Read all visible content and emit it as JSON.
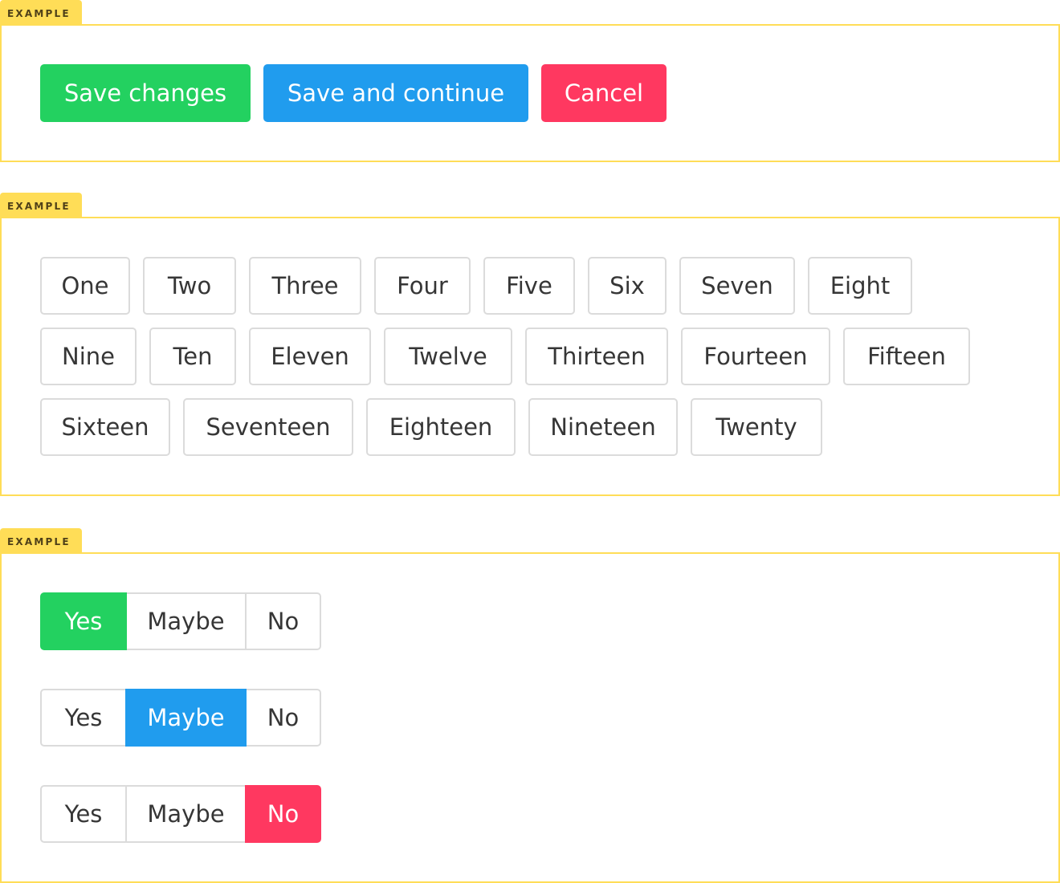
{
  "example_label": "EXAMPLE",
  "colors": {
    "success": "#23d160",
    "info": "#209cee",
    "danger": "#ff3860",
    "tag": "#ffdd57",
    "border": "#dbdbdb"
  },
  "section1": {
    "buttons": [
      {
        "label": "Save changes",
        "color": "#23d160"
      },
      {
        "label": "Save and continue",
        "color": "#209cee"
      },
      {
        "label": "Cancel",
        "color": "#ff3860"
      }
    ]
  },
  "section2": {
    "buttons": [
      "One",
      "Two",
      "Three",
      "Four",
      "Five",
      "Six",
      "Seven",
      "Eight",
      "Nine",
      "Ten",
      "Eleven",
      "Twelve",
      "Thirteen",
      "Fourteen",
      "Fifteen",
      "Sixteen",
      "Seventeen",
      "Eighteen",
      "Nineteen",
      "Twenty"
    ]
  },
  "section3": {
    "groups": [
      {
        "options": [
          "Yes",
          "Maybe",
          "No"
        ],
        "selected": "Yes",
        "selected_color": "#23d160"
      },
      {
        "options": [
          "Yes",
          "Maybe",
          "No"
        ],
        "selected": "Maybe",
        "selected_color": "#209cee"
      },
      {
        "options": [
          "Yes",
          "Maybe",
          "No"
        ],
        "selected": "No",
        "selected_color": "#ff3860"
      }
    ]
  }
}
